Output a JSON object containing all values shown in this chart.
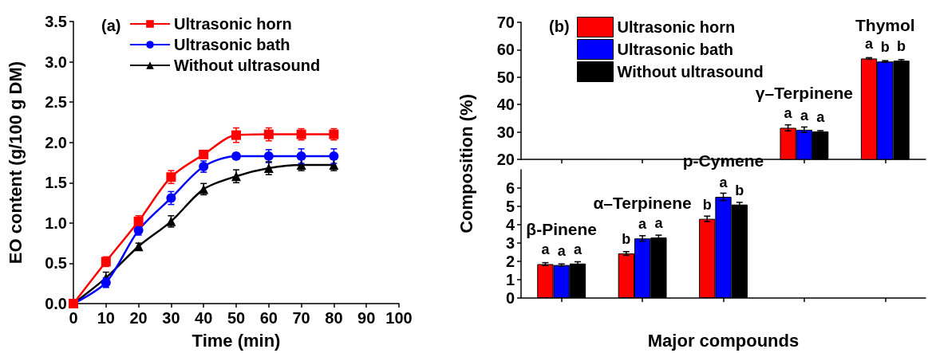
{
  "chart_data": [
    {
      "type": "line",
      "title": "(a)",
      "xlabel": "Time (min)",
      "ylabel": "EO content (g/100 g DM)",
      "x": [
        0,
        10,
        20,
        30,
        40,
        50,
        60,
        70,
        80
      ],
      "xlim": [
        0,
        100
      ],
      "xticks": [
        0,
        10,
        20,
        30,
        40,
        50,
        60,
        70,
        80,
        90,
        100
      ],
      "ylim": [
        0,
        3.5
      ],
      "yticks": [
        {
          "value": 0,
          "label": "0.0"
        },
        {
          "value": 0.5,
          "label": "0.5"
        },
        {
          "value": 1,
          "label": "1.0"
        },
        {
          "value": 1.5,
          "label": "1.5"
        },
        {
          "value": 2,
          "label": "2.0"
        },
        {
          "value": 2.5,
          "label": "2.5"
        },
        {
          "value": 3,
          "label": "3.0"
        },
        {
          "value": 3.5,
          "label": "3.5"
        }
      ],
      "legend": "top left",
      "series": [
        {
          "name": "Ultrasonic horn",
          "color": "#ff0000",
          "marker": "square",
          "values": [
            0,
            0.52,
            1.02,
            1.57,
            1.85,
            2.09,
            2.1,
            2.1,
            2.1
          ],
          "errors": [
            null,
            0.06,
            0.07,
            0.08,
            0.04,
            0.09,
            0.08,
            0.07,
            0.07
          ]
        },
        {
          "name": "Ultrasonic bath",
          "color": "#0000ff",
          "marker": "circle",
          "values": [
            0,
            0.26,
            0.91,
            1.31,
            1.7,
            1.83,
            1.83,
            1.83,
            1.83
          ],
          "errors": [
            null,
            0.06,
            0.06,
            0.08,
            0.07,
            0.04,
            0.08,
            0.09,
            0.09
          ]
        },
        {
          "name": "Without ultrasound",
          "color": "#000000",
          "marker": "triangle",
          "values": [
            0,
            0.32,
            0.71,
            1.02,
            1.42,
            1.58,
            1.68,
            1.72,
            1.72
          ],
          "errors": [
            null,
            0.07,
            0.04,
            0.07,
            0.07,
            0.08,
            0.08,
            0.07,
            0.07
          ]
        }
      ]
    },
    {
      "type": "bar",
      "title": "(b)",
      "categories": [
        null,
        null,
        null,
        null,
        null
      ],
      "annotations": [
        "γ–Terpinene",
        "Thymol"
      ],
      "ylim": [
        20,
        70
      ],
      "yticks": [
        20,
        30,
        40,
        50,
        60,
        70
      ],
      "tick_labels": "y",
      "legend": "top left",
      "series": [
        {
          "name": "Ultrasonic horn",
          "color": "#ff0000",
          "values": [
            null,
            null,
            null,
            31.5,
            56.8
          ],
          "errors": [
            null,
            null,
            null,
            1.1,
            0.3
          ],
          "value_labels": [
            null,
            null,
            null,
            "a",
            "a"
          ]
        },
        {
          "name": "Ultrasonic bath",
          "color": "#0000ff",
          "values": [
            null,
            null,
            null,
            30.8,
            55.7
          ],
          "errors": [
            null,
            null,
            null,
            1,
            0.3
          ],
          "value_labels": [
            null,
            null,
            null,
            "a",
            "b"
          ]
        },
        {
          "name": "Without ultrasound",
          "color": "#000000",
          "values": [
            null,
            null,
            null,
            30.2,
            56
          ],
          "errors": [
            null,
            null,
            null,
            0.3,
            0.4
          ],
          "value_labels": [
            null,
            null,
            null,
            "a",
            "b"
          ]
        }
      ]
    },
    {
      "type": "bar",
      "xlabel": "Major compounds",
      "ylabel": "Composition (%)",
      "categories": [
        null,
        null,
        null,
        null,
        null
      ],
      "annotations": [
        "β-Pinene",
        "α–Terpinene",
        "p-Cymene"
      ],
      "ylim": [
        0,
        7
      ],
      "yticks": [
        0,
        1,
        2,
        3,
        4,
        5,
        6
      ],
      "tick_labels": "y",
      "series": [
        {
          "color": "#ff0000",
          "values": [
            1.85,
            2.43,
            4.32,
            null,
            null
          ],
          "errors": [
            0.08,
            0.1,
            0.15,
            null,
            null
          ],
          "value_labels": [
            "a",
            "b",
            "b",
            null,
            null
          ]
        },
        {
          "color": "#0000ff",
          "values": [
            1.8,
            3.25,
            5.52,
            null,
            null
          ],
          "errors": [
            0.06,
            0.15,
            0.2,
            null,
            null
          ],
          "value_labels": [
            "a",
            "a",
            "a",
            null,
            null
          ]
        },
        {
          "color": "#000000",
          "values": [
            1.88,
            3.3,
            5.1,
            null,
            null
          ],
          "errors": [
            0.1,
            0.13,
            0.12,
            null,
            null
          ],
          "value_labels": [
            "a",
            "a",
            "b",
            null,
            null
          ]
        }
      ]
    }
  ]
}
